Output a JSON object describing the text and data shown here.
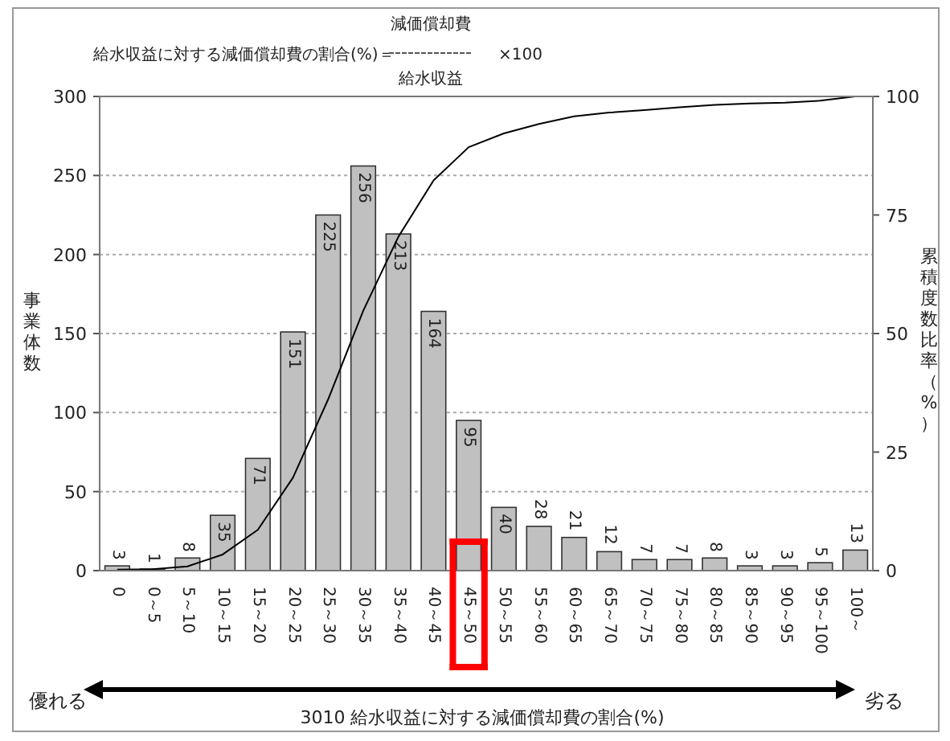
{
  "chart_data": {
    "type": "bar",
    "title": "給水収益に対する減価償却費の割合(%)＝",
    "xlabel": "3010  給水収益に対する減価償却費の割合(%)",
    "ylabel": "事業体数",
    "y2label": "累積度数比率（%）",
    "annotations": [
      "減価償却費",
      "給水収益",
      "×100",
      "優れる",
      "劣る"
    ],
    "categories": [
      "0",
      "0～5",
      "5～10",
      "10～15",
      "15～20",
      "20～25",
      "25～30",
      "30～35",
      "35～40",
      "40～45",
      "45～50",
      "50～55",
      "55～60",
      "60～65",
      "65～70",
      "70～75",
      "75～80",
      "80～85",
      "85～90",
      "90～95",
      "95～100",
      "100～"
    ],
    "series": [
      {
        "color": "#c0c0c0",
        "values": [
          3,
          1,
          8,
          35,
          71,
          151,
          225,
          256,
          213,
          164,
          95,
          40,
          28,
          21,
          12,
          7,
          7,
          8,
          3,
          3,
          5,
          13
        ],
        "value_labels": [
          "3",
          "1",
          "8",
          "35",
          "71",
          "151",
          "225",
          "256",
          "213",
          "164",
          "95",
          "40",
          "28",
          "21",
          "12",
          "7",
          "7",
          "8",
          "3",
          "3",
          "5",
          "13"
        ]
      },
      {
        "type": "line",
        "axis": "y2",
        "color": "#000000",
        "values": [
          0.2,
          0.3,
          0.9,
          3.4,
          8.6,
          19.6,
          36.1,
          54.8,
          70.4,
          82.3,
          89.3,
          92.2,
          94.2,
          95.8,
          96.6,
          97.1,
          97.7,
          98.2,
          98.5,
          98.7,
          99.1,
          100
        ]
      }
    ],
    "ylim": [
      0,
      300
    ],
    "yticks": [
      0,
      50,
      100,
      150,
      200,
      250,
      300
    ],
    "y2lim": [
      0,
      100
    ],
    "y2ticks": [
      0,
      25,
      50,
      75,
      100
    ],
    "grid": "y"
  }
}
